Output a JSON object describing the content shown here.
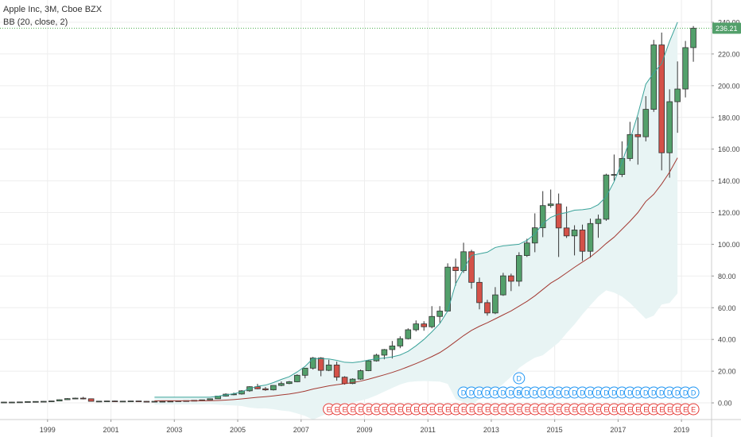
{
  "header": {
    "symbol_line": "Apple Inc, 3M, Cboe BZX",
    "indicator_line": "BB (20, close, 2)"
  },
  "colors": {
    "up_body": "#53a06b",
    "down_body": "#d45148",
    "candle_outline": "#333333",
    "bb_upper": "#3aa39a",
    "bb_basis": "#a33a33",
    "bb_fill": "#e8f4f4",
    "price_line": "#4caf50",
    "price_badge": "#53a06b",
    "dividend_marker": "#2196f3",
    "earnings_marker": "#e53935",
    "grid": "#eeeeee",
    "axis_text": "#444444"
  },
  "price_axis": {
    "last_price_label": "236.21",
    "last_price": 236.21,
    "tick_labels": [
      "240.00",
      "220.00",
      "200.00",
      "180.00",
      "160.00",
      "140.00",
      "120.00",
      "100.00",
      "80.00",
      "60.00",
      "40.00",
      "20.00",
      "0.00"
    ]
  },
  "time_axis": {
    "tick_labels": [
      "1999",
      "2001",
      "2003",
      "2005",
      "2007",
      "2009",
      "2011",
      "2013",
      "2015",
      "2017",
      "2019"
    ]
  },
  "markers": {
    "dividend_letter": "D",
    "split_letter": "S",
    "earnings_letter": "E"
  },
  "chart_data": {
    "type": "candlestick",
    "title": "Apple Inc, 3M, Cboe BZX",
    "interval": "3M",
    "indicator": "BB (20, close, 2)",
    "ylim": [
      -8,
      242
    ],
    "x_start": "1998-01",
    "candles": [
      {
        "d": "1998-Q1",
        "o": 0.5,
        "h": 0.6,
        "l": 0.4,
        "c": 0.5
      },
      {
        "d": "1998-Q2",
        "o": 0.5,
        "h": 0.6,
        "l": 0.4,
        "c": 0.5
      },
      {
        "d": "1998-Q3",
        "o": 0.5,
        "h": 0.7,
        "l": 0.4,
        "c": 0.6
      },
      {
        "d": "1998-Q4",
        "o": 0.6,
        "h": 0.9,
        "l": 0.5,
        "c": 0.8
      },
      {
        "d": "1999-Q1",
        "o": 0.8,
        "h": 1.0,
        "l": 0.7,
        "c": 0.9
      },
      {
        "d": "1999-Q2",
        "o": 0.9,
        "h": 1.1,
        "l": 0.8,
        "c": 1.0
      },
      {
        "d": "1999-Q3",
        "o": 1.0,
        "h": 1.3,
        "l": 0.9,
        "c": 1.2
      },
      {
        "d": "1999-Q4",
        "o": 1.2,
        "h": 2.2,
        "l": 1.1,
        "c": 2.0
      },
      {
        "d": "2000-Q1",
        "o": 2.0,
        "h": 3.0,
        "l": 1.8,
        "c": 2.7
      },
      {
        "d": "2000-Q2",
        "o": 2.7,
        "h": 3.3,
        "l": 2.4,
        "c": 3.0
      },
      {
        "d": "2000-Q3",
        "o": 3.0,
        "h": 3.8,
        "l": 2.2,
        "c": 2.6
      },
      {
        "d": "2000-Q4",
        "o": 2.6,
        "h": 2.8,
        "l": 0.9,
        "c": 1.0
      },
      {
        "d": "2001-Q1",
        "o": 1.0,
        "h": 1.2,
        "l": 0.9,
        "c": 1.1
      },
      {
        "d": "2001-Q2",
        "o": 1.1,
        "h": 1.3,
        "l": 0.9,
        "c": 1.2
      },
      {
        "d": "2001-Q3",
        "o": 1.2,
        "h": 1.4,
        "l": 0.9,
        "c": 1.0
      },
      {
        "d": "2001-Q4",
        "o": 1.0,
        "h": 1.2,
        "l": 0.9,
        "c": 1.1
      },
      {
        "d": "2002-Q1",
        "o": 1.1,
        "h": 1.3,
        "l": 1.0,
        "c": 1.2
      },
      {
        "d": "2002-Q2",
        "o": 1.2,
        "h": 1.3,
        "l": 0.9,
        "c": 1.0
      },
      {
        "d": "2002-Q3",
        "o": 1.0,
        "h": 1.1,
        "l": 0.8,
        "c": 0.9
      },
      {
        "d": "2002-Q4",
        "o": 0.9,
        "h": 1.1,
        "l": 0.8,
        "c": 1.0
      },
      {
        "d": "2003-Q1",
        "o": 1.0,
        "h": 1.1,
        "l": 0.9,
        "c": 1.0
      },
      {
        "d": "2003-Q2",
        "o": 1.0,
        "h": 1.2,
        "l": 0.9,
        "c": 1.1
      },
      {
        "d": "2003-Q3",
        "o": 1.1,
        "h": 1.4,
        "l": 1.0,
        "c": 1.3
      },
      {
        "d": "2003-Q4",
        "o": 1.3,
        "h": 1.5,
        "l": 1.2,
        "c": 1.4
      },
      {
        "d": "2004-Q1",
        "o": 1.4,
        "h": 1.7,
        "l": 1.3,
        "c": 1.6
      },
      {
        "d": "2004-Q2",
        "o": 1.6,
        "h": 2.0,
        "l": 1.5,
        "c": 1.9
      },
      {
        "d": "2004-Q3",
        "o": 1.9,
        "h": 2.7,
        "l": 1.8,
        "c": 2.6
      },
      {
        "d": "2004-Q4",
        "o": 2.6,
        "h": 4.5,
        "l": 2.5,
        "c": 4.3
      },
      {
        "d": "2005-Q1",
        "o": 4.3,
        "h": 6.0,
        "l": 4.0,
        "c": 5.5
      },
      {
        "d": "2005-Q2",
        "o": 5.5,
        "h": 6.5,
        "l": 4.8,
        "c": 5.6
      },
      {
        "d": "2005-Q3",
        "o": 5.6,
        "h": 8.0,
        "l": 5.2,
        "c": 7.6
      },
      {
        "d": "2005-Q4",
        "o": 7.6,
        "h": 10.5,
        "l": 7.0,
        "c": 10.2
      },
      {
        "d": "2006-Q1",
        "o": 10.2,
        "h": 12.0,
        "l": 8.6,
        "c": 8.9
      },
      {
        "d": "2006-Q2",
        "o": 8.9,
        "h": 10.0,
        "l": 7.6,
        "c": 8.2
      },
      {
        "d": "2006-Q3",
        "o": 8.2,
        "h": 11.0,
        "l": 7.8,
        "c": 11.0
      },
      {
        "d": "2006-Q4",
        "o": 11.0,
        "h": 13.5,
        "l": 10.5,
        "c": 12.2
      },
      {
        "d": "2007-Q1",
        "o": 12.2,
        "h": 13.8,
        "l": 11.8,
        "c": 13.3
      },
      {
        "d": "2007-Q2",
        "o": 13.3,
        "h": 18.0,
        "l": 13.0,
        "c": 17.4
      },
      {
        "d": "2007-Q3",
        "o": 17.4,
        "h": 22.0,
        "l": 15.5,
        "c": 21.9
      },
      {
        "d": "2007-Q4",
        "o": 21.9,
        "h": 29.0,
        "l": 21.0,
        "c": 28.3
      },
      {
        "d": "2008-Q1",
        "o": 28.3,
        "h": 28.8,
        "l": 16.8,
        "c": 20.5
      },
      {
        "d": "2008-Q2",
        "o": 20.5,
        "h": 27.2,
        "l": 20.0,
        "c": 23.9
      },
      {
        "d": "2008-Q3",
        "o": 23.9,
        "h": 26.0,
        "l": 14.0,
        "c": 16.2
      },
      {
        "d": "2008-Q4",
        "o": 16.2,
        "h": 16.8,
        "l": 11.5,
        "c": 12.2
      },
      {
        "d": "2009-Q1",
        "o": 12.2,
        "h": 15.5,
        "l": 11.8,
        "c": 15.0
      },
      {
        "d": "2009-Q2",
        "o": 15.0,
        "h": 21.0,
        "l": 14.5,
        "c": 20.3
      },
      {
        "d": "2009-Q3",
        "o": 20.3,
        "h": 27.0,
        "l": 20.0,
        "c": 26.5
      },
      {
        "d": "2009-Q4",
        "o": 26.5,
        "h": 31.0,
        "l": 26.0,
        "c": 30.1
      },
      {
        "d": "2010-Q1",
        "o": 30.1,
        "h": 34.0,
        "l": 27.5,
        "c": 33.6
      },
      {
        "d": "2010-Q2",
        "o": 33.6,
        "h": 39.0,
        "l": 28.0,
        "c": 35.9
      },
      {
        "d": "2010-Q3",
        "o": 35.9,
        "h": 42.0,
        "l": 34.5,
        "c": 40.5
      },
      {
        "d": "2010-Q4",
        "o": 40.5,
        "h": 47.0,
        "l": 40.0,
        "c": 46.1
      },
      {
        "d": "2011-Q1",
        "o": 46.1,
        "h": 52.0,
        "l": 45.0,
        "c": 49.8
      },
      {
        "d": "2011-Q2",
        "o": 49.8,
        "h": 51.5,
        "l": 45.5,
        "c": 48.0
      },
      {
        "d": "2011-Q3",
        "o": 48.0,
        "h": 61.0,
        "l": 47.0,
        "c": 54.5
      },
      {
        "d": "2011-Q4",
        "o": 54.5,
        "h": 61.0,
        "l": 50.5,
        "c": 57.9
      },
      {
        "d": "2012-Q1",
        "o": 57.9,
        "h": 88.0,
        "l": 57.5,
        "c": 85.6
      },
      {
        "d": "2012-Q2",
        "o": 85.6,
        "h": 91.0,
        "l": 74.0,
        "c": 83.4
      },
      {
        "d": "2012-Q3",
        "o": 83.4,
        "h": 101.0,
        "l": 82.0,
        "c": 95.3
      },
      {
        "d": "2012-Q4",
        "o": 95.3,
        "h": 96.5,
        "l": 72.0,
        "c": 76.0
      },
      {
        "d": "2013-Q1",
        "o": 76.0,
        "h": 79.0,
        "l": 59.0,
        "c": 63.2
      },
      {
        "d": "2013-Q2",
        "o": 63.2,
        "h": 65.0,
        "l": 55.0,
        "c": 56.7
      },
      {
        "d": "2013-Q3",
        "o": 56.7,
        "h": 73.0,
        "l": 56.0,
        "c": 68.1
      },
      {
        "d": "2013-Q4",
        "o": 68.1,
        "h": 82.0,
        "l": 67.5,
        "c": 80.1
      },
      {
        "d": "2014-Q1",
        "o": 80.1,
        "h": 81.5,
        "l": 70.5,
        "c": 76.7
      },
      {
        "d": "2014-Q2",
        "o": 76.7,
        "h": 95.0,
        "l": 73.5,
        "c": 92.9
      },
      {
        "d": "2014-Q3",
        "o": 92.9,
        "h": 103.5,
        "l": 92.0,
        "c": 100.8
      },
      {
        "d": "2014-Q4",
        "o": 100.8,
        "h": 119.5,
        "l": 95.0,
        "c": 110.4
      },
      {
        "d": "2015-Q1",
        "o": 110.4,
        "h": 133.5,
        "l": 104.5,
        "c": 124.4
      },
      {
        "d": "2015-Q2",
        "o": 124.4,
        "h": 134.5,
        "l": 123.0,
        "c": 125.4
      },
      {
        "d": "2015-Q3",
        "o": 125.4,
        "h": 132.0,
        "l": 92.0,
        "c": 110.3
      },
      {
        "d": "2015-Q4",
        "o": 110.3,
        "h": 123.8,
        "l": 104.0,
        "c": 105.3
      },
      {
        "d": "2016-Q1",
        "o": 105.3,
        "h": 112.0,
        "l": 93.0,
        "c": 109.0
      },
      {
        "d": "2016-Q2",
        "o": 109.0,
        "h": 112.4,
        "l": 89.5,
        "c": 95.6
      },
      {
        "d": "2016-Q3",
        "o": 95.6,
        "h": 116.2,
        "l": 91.5,
        "c": 113.1
      },
      {
        "d": "2016-Q4",
        "o": 113.1,
        "h": 118.7,
        "l": 104.1,
        "c": 115.8
      },
      {
        "d": "2017-Q1",
        "o": 115.8,
        "h": 144.5,
        "l": 114.8,
        "c": 143.7
      },
      {
        "d": "2017-Q2",
        "o": 143.7,
        "h": 156.6,
        "l": 140.1,
        "c": 144.0
      },
      {
        "d": "2017-Q3",
        "o": 144.0,
        "h": 164.9,
        "l": 142.4,
        "c": 154.1
      },
      {
        "d": "2017-Q4",
        "o": 154.1,
        "h": 177.2,
        "l": 152.5,
        "c": 169.2
      },
      {
        "d": "2018-Q1",
        "o": 169.2,
        "h": 180.1,
        "l": 150.2,
        "c": 167.8
      },
      {
        "d": "2018-Q2",
        "o": 167.8,
        "h": 193.4,
        "l": 164.9,
        "c": 185.1
      },
      {
        "d": "2018-Q3",
        "o": 185.1,
        "h": 228.9,
        "l": 183.5,
        "c": 225.7
      },
      {
        "d": "2018-Q4",
        "o": 225.7,
        "h": 233.5,
        "l": 146.6,
        "c": 157.7
      },
      {
        "d": "2019-Q1",
        "o": 157.7,
        "h": 197.7,
        "l": 142.0,
        "c": 189.9
      },
      {
        "d": "2019-Q2",
        "o": 189.9,
        "h": 215.3,
        "l": 170.3,
        "c": 197.9
      },
      {
        "d": "2019-Q3",
        "o": 197.9,
        "h": 228.2,
        "l": 192.6,
        "c": 224.0
      },
      {
        "d": "2019-Q4",
        "o": 224.0,
        "h": 237.6,
        "l": 215.1,
        "c": 236.21
      }
    ],
    "bb_upper": [
      null,
      null,
      null,
      null,
      null,
      null,
      null,
      null,
      null,
      null,
      null,
      null,
      null,
      null,
      null,
      null,
      null,
      null,
      null,
      3.6,
      3.6,
      3.6,
      3.6,
      3.6,
      3.6,
      3.6,
      3.6,
      4.2,
      5.0,
      5.8,
      7.0,
      9.0,
      10.5,
      11.2,
      12.8,
      14.8,
      16.5,
      19.5,
      23.0,
      28.0,
      27.8,
      27.7,
      26.8,
      25.6,
      25.4,
      26.0,
      27.0,
      27.8,
      28.3,
      29.0,
      30.2,
      32.5,
      36.0,
      40.0,
      44.8,
      50.0,
      58.0,
      75.0,
      84.5,
      93.0,
      94.0,
      95.0,
      98.0,
      99.0,
      99.5,
      100.0,
      102.5,
      106.5,
      113.0,
      117.0,
      119.0,
      120.0,
      121.5,
      121.8,
      122.5,
      125.0,
      130.0,
      139.5,
      152.0,
      166.0,
      182.0,
      201.0,
      208.0,
      214.0,
      228.0,
      240.0
    ],
    "bb_basis": [
      null,
      null,
      null,
      null,
      null,
      null,
      null,
      null,
      null,
      null,
      null,
      null,
      null,
      null,
      null,
      null,
      null,
      null,
      null,
      1.25,
      1.3,
      1.3,
      1.3,
      1.3,
      1.3,
      1.35,
      1.4,
      1.55,
      1.8,
      2.1,
      2.5,
      3.0,
      3.5,
      3.9,
      4.4,
      5.0,
      5.6,
      6.4,
      7.4,
      8.7,
      9.7,
      10.7,
      11.5,
      12.1,
      12.8,
      13.7,
      14.9,
      16.3,
      17.7,
      19.2,
      20.9,
      22.8,
      24.8,
      26.9,
      29.2,
      31.7,
      35.0,
      38.7,
      42.4,
      45.7,
      48.3,
      50.5,
      53.0,
      55.5,
      58.0,
      61.0,
      64.0,
      67.5,
      71.5,
      75.5,
      78.5,
      82.0,
      85.5,
      88.8,
      92.0,
      96.0,
      100.5,
      104.5,
      109.5,
      114.5,
      120.0,
      127.0,
      131.5,
      138.0,
      145.5,
      154.5
    ],
    "bb_lower": [
      null,
      null,
      null,
      null,
      null,
      null,
      null,
      null,
      null,
      null,
      null,
      null,
      null,
      null,
      null,
      null,
      null,
      null,
      null,
      -1.1,
      -1.0,
      -1.0,
      -1.0,
      -1.0,
      -1.0,
      -0.9,
      -0.8,
      -1.1,
      -1.4,
      -1.6,
      -2.0,
      -3.0,
      -3.5,
      -3.4,
      -4.0,
      -4.8,
      -5.3,
      -6.7,
      -8.2,
      -10.6,
      -8.4,
      -6.3,
      -3.8,
      -1.4,
      0.2,
      1.4,
      2.8,
      4.8,
      7.1,
      9.4,
      11.6,
      13.1,
      13.6,
      13.8,
      13.6,
      13.4,
      12.0,
      2.4,
      0.3,
      -1.6,
      2.6,
      6.0,
      8.0,
      12.0,
      16.5,
      22.0,
      25.5,
      28.5,
      30.0,
      34.0,
      38.0,
      44.0,
      49.5,
      55.8,
      61.5,
      67.0,
      71.0,
      69.5,
      67.0,
      63.0,
      58.0,
      53.0,
      55.0,
      62.0,
      63.0,
      69.0
    ],
    "dividends": [
      "2012-Q3",
      "2012-Q4",
      "2013-Q1",
      "2013-Q2",
      "2013-Q3",
      "2013-Q4",
      "2014-Q1",
      "2014-Q2",
      "2014-Q3",
      "2014-Q4",
      "2015-Q1",
      "2015-Q2",
      "2015-Q3",
      "2015-Q4",
      "2016-Q1",
      "2016-Q2",
      "2016-Q3",
      "2016-Q4",
      "2017-Q1",
      "2017-Q2",
      "2017-Q3",
      "2017-Q4",
      "2018-Q1",
      "2018-Q2",
      "2018-Q3",
      "2018-Q4",
      "2019-Q1",
      "2019-Q2",
      "2019-Q3",
      "2019-Q4"
    ],
    "splits": [
      "2014-Q2"
    ],
    "earnings_range": [
      "2008-Q2",
      "2019-Q4"
    ],
    "x_tick_labels": [
      "1999",
      "2001",
      "2003",
      "2005",
      "2007",
      "2009",
      "2011",
      "2013",
      "2015",
      "2017",
      "2019"
    ],
    "y_tick_labels": [
      "0.00",
      "20.00",
      "40.00",
      "60.00",
      "80.00",
      "100.00",
      "120.00",
      "140.00",
      "160.00",
      "180.00",
      "200.00",
      "220.00",
      "240.00"
    ],
    "grid": true
  }
}
